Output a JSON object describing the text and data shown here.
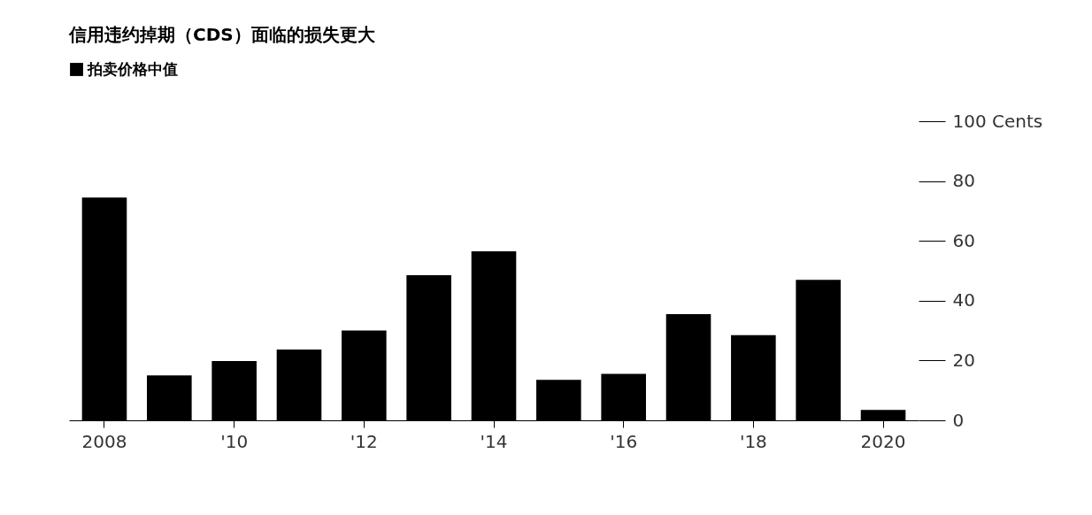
{
  "chart_data": {
    "type": "bar",
    "title": "信用违约掉期（CDS）面临的损失更大",
    "categories": [
      "2008",
      null,
      "'10",
      null,
      "'12",
      null,
      "'14",
      null,
      "'16",
      null,
      "'18",
      null,
      "2020"
    ],
    "series": [
      {
        "name": "拍卖价格中值",
        "color": "#000000",
        "values": [
          74.5,
          15,
          19.8,
          23.7,
          30,
          48.5,
          56.5,
          13.5,
          15.5,
          35.5,
          28.5,
          47,
          3.5
        ]
      }
    ],
    "ylim": [
      0,
      100
    ],
    "yticks": [
      0,
      20,
      40,
      60,
      80,
      {
        "value": 100,
        "label": "100 Cents"
      }
    ],
    "grid": false,
    "legend": "top left"
  }
}
